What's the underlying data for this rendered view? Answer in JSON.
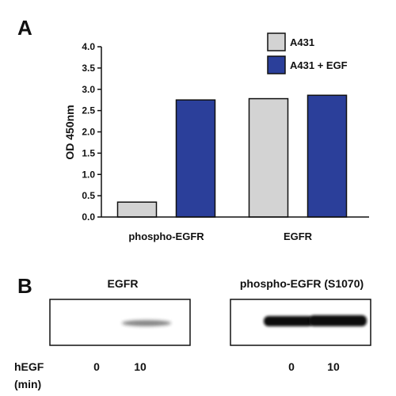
{
  "panel_a_label": "A",
  "panel_b_label": "B",
  "chart_data": {
    "type": "bar",
    "categories": [
      "phospho-EGFR",
      "EGFR"
    ],
    "series": [
      {
        "name": "A431",
        "values": [
          0.35,
          2.78
        ],
        "color": "#d3d3d3"
      },
      {
        "name": "A431 + EGF",
        "values": [
          2.75,
          2.86
        ],
        "color": "#2b3f9a"
      }
    ],
    "title": "",
    "xlabel": "",
    "ylabel": "OD 450nm",
    "ylim": [
      0,
      4.0
    ],
    "yticks": [
      "0.0",
      "0.5",
      "1.0",
      "1.5",
      "2.0",
      "2.5",
      "3.0",
      "3.5",
      "4.0"
    ],
    "grid": false,
    "legend_placement": "top-right"
  },
  "blots": {
    "left_title": "EGFR",
    "right_title": "phospho-EGFR (S1070)",
    "row_label_line1": "hEGF",
    "row_label_line2": "(min)",
    "left_lanes": [
      "0",
      "10"
    ],
    "right_lanes": [
      "0",
      "10"
    ],
    "band_color": "#1a1a1a"
  }
}
